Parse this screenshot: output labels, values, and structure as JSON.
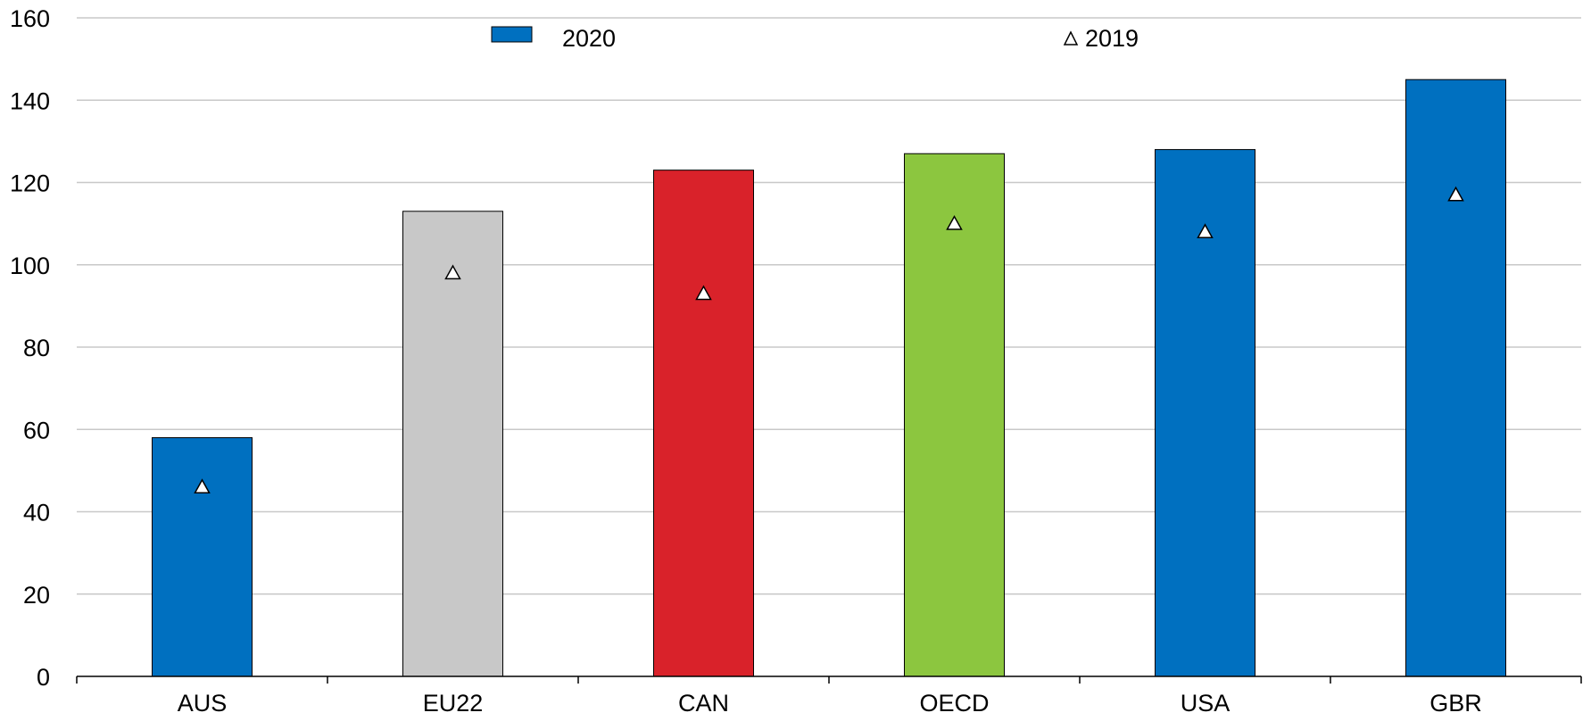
{
  "chart_data": {
    "type": "bar",
    "categories": [
      "AUS",
      "EU22",
      "CAN",
      "OECD",
      "USA",
      "GBR"
    ],
    "series": [
      {
        "name": "2020",
        "type": "bar",
        "values": [
          58,
          113,
          123,
          127,
          128,
          145
        ],
        "colors": [
          "#0070c0",
          "#c8c8c8",
          "#d9222a",
          "#8cc63f",
          "#0070c0",
          "#0070c0"
        ]
      },
      {
        "name": "2019",
        "type": "marker",
        "marker": "triangle",
        "values": [
          46,
          98,
          93,
          110,
          108,
          117
        ]
      }
    ],
    "title": "",
    "xlabel": "",
    "ylabel": "",
    "ylim": [
      0,
      160
    ],
    "yticks": [
      0,
      20,
      40,
      60,
      80,
      100,
      120,
      140,
      160
    ],
    "grid": true,
    "legend": {
      "placement": "top",
      "items": [
        {
          "label": "2020",
          "symbol": "bar",
          "color": "#0070c0"
        },
        {
          "label": "2019",
          "symbol": "triangle"
        }
      ]
    }
  }
}
